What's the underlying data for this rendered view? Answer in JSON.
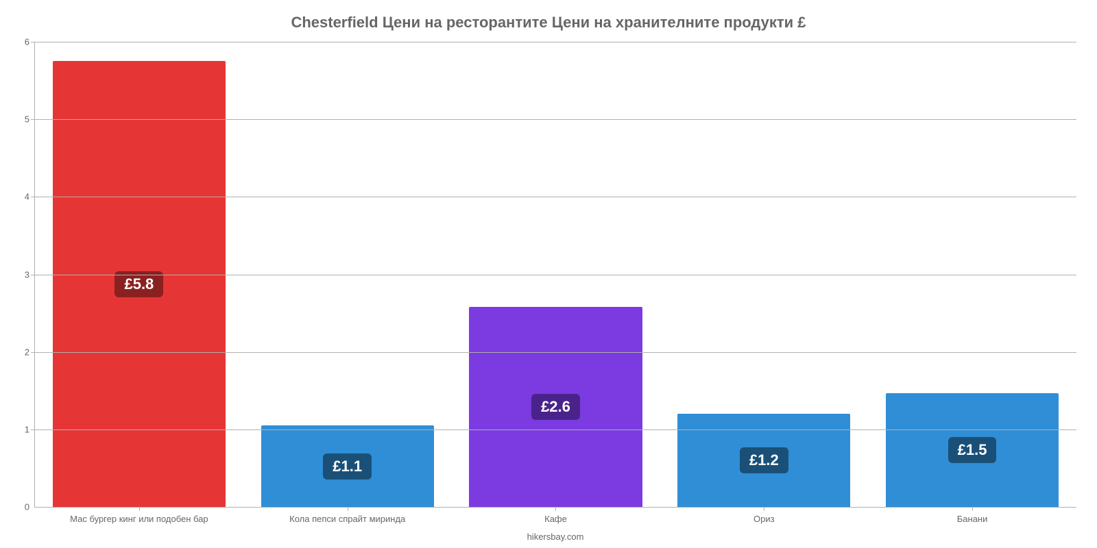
{
  "chart": {
    "type": "bar",
    "title": "Chesterfield Цени на ресторантите Цени на хранителните продукти £",
    "title_fontsize": 22,
    "title_color": "#666666",
    "background_color": "#ffffff",
    "grid_color": "#b0b0b0",
    "axis_font_color": "#666666",
    "axis_fontsize": 13,
    "ylim": [
      0,
      6
    ],
    "ytick_step": 1,
    "yticks": [
      0,
      1,
      2,
      3,
      4,
      5,
      6
    ],
    "bar_width": 0.83,
    "value_label_fontsize": 22,
    "value_badge_text_color": "#ffffff",
    "value_badge_radius": 6,
    "categories": [
      {
        "label": "Мас бургер кинг или подобен бар",
        "value": 5.75,
        "display": "£5.8",
        "color": "#e63535",
        "badge_bg": "#8b2020"
      },
      {
        "label": "Кола пепси спрайт миринда",
        "value": 1.05,
        "display": "£1.1",
        "color": "#2f8ed6",
        "badge_bg": "#1a5077"
      },
      {
        "label": "Кафе",
        "value": 2.58,
        "display": "£2.6",
        "color": "#7b3be0",
        "badge_bg": "#4a238a"
      },
      {
        "label": "Ориз",
        "value": 1.2,
        "display": "£1.2",
        "color": "#2f8ed6",
        "badge_bg": "#1a5077"
      },
      {
        "label": "Банани",
        "value": 1.47,
        "display": "£1.5",
        "color": "#2f8ed6",
        "badge_bg": "#1a5077"
      }
    ],
    "attribution": "hikersbay.com"
  }
}
